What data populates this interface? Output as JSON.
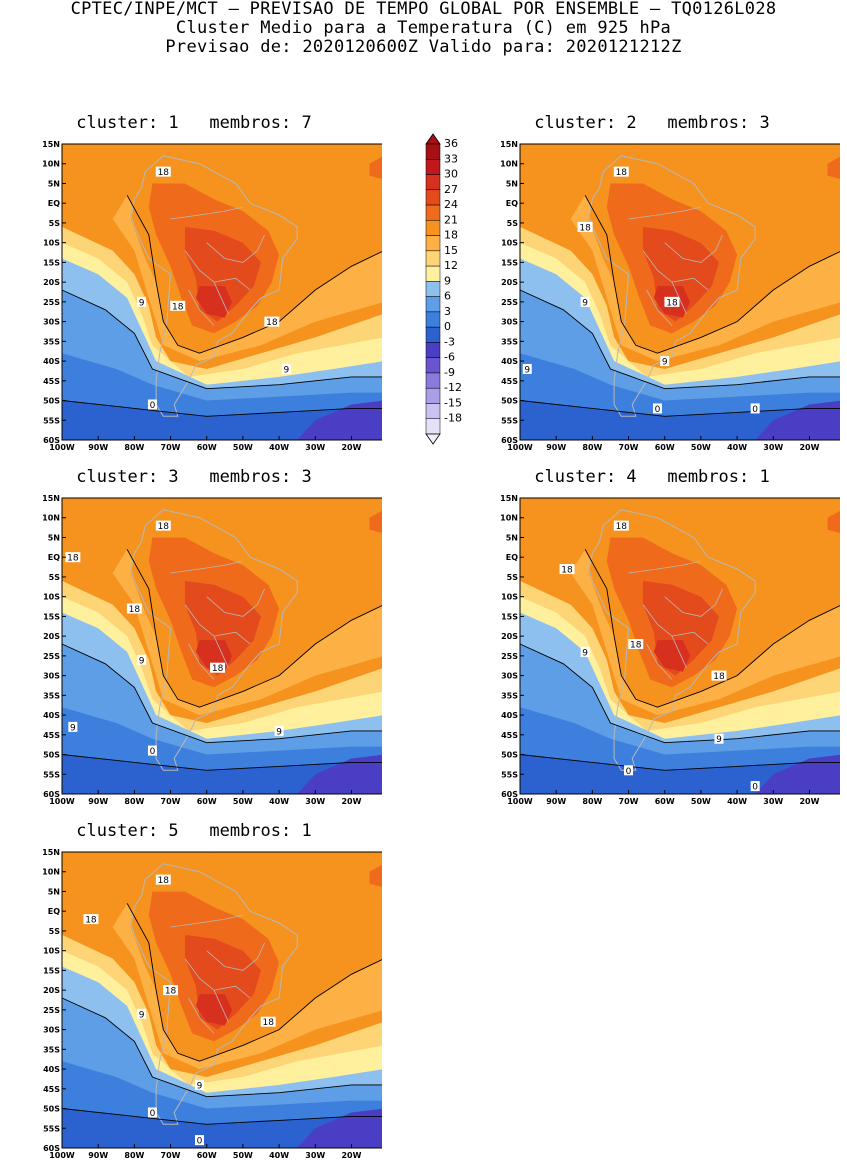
{
  "header": {
    "line1": "CPTEC/INPE/MCT — PREVISAO DE TEMPO GLOBAL POR ENSEMBLE — TQ0126L028",
    "line2": "Cluster Medio para a Temperatura (C) em 925 hPa",
    "line3": "Previsao de: 2020120600Z   Valido para: 2020121212Z"
  },
  "map_axes": {
    "lat_labels": [
      "15N",
      "10N",
      "5N",
      "EQ",
      "5S",
      "10S",
      "15S",
      "20S",
      "25S",
      "30S",
      "35S",
      "40S",
      "45S",
      "50S",
      "55S",
      "60S"
    ],
    "lon_labels": [
      "100W",
      "90W",
      "80W",
      "70W",
      "60W",
      "50W",
      "40W",
      "30W",
      "20W"
    ],
    "lat_range": [
      -60,
      15
    ],
    "lon_range": [
      -100,
      -11
    ]
  },
  "colorbar": {
    "levels": [
      "36",
      "33",
      "30",
      "27",
      "24",
      "21",
      "18",
      "15",
      "12",
      "9",
      "6",
      "3",
      "0",
      "-3",
      "-6",
      "-9",
      "-12",
      "-15",
      "-18"
    ],
    "colors": [
      "#a50f15",
      "#c0161c",
      "#d7301f",
      "#e34a1c",
      "#f06a1c",
      "#f5931e",
      "#fdb043",
      "#fed576",
      "#fff09e",
      "#8ec0ef",
      "#5e9ee6",
      "#3d7fdd",
      "#2b62d0",
      "#4a3fc4",
      "#6a55cf",
      "#8b79dc",
      "#ab9de7",
      "#cbc2f1",
      "#e6e1f8"
    ]
  },
  "panels": [
    {
      "title": "cluster: 1   membros: 7",
      "labels": [
        "18",
        "18",
        "18",
        "9",
        "9",
        "0"
      ]
    },
    {
      "title": "cluster: 2   membros: 3",
      "labels": [
        "18",
        "18",
        "18",
        "9",
        "9",
        "9",
        "0",
        "0"
      ]
    },
    {
      "title": "cluster: 3   membros: 3",
      "labels": [
        "18",
        "18",
        "18",
        "18",
        "9",
        "9",
        "9",
        "0"
      ]
    },
    {
      "title": "cluster: 4   membros: 1",
      "labels": [
        "18",
        "18",
        "18",
        "18",
        "9",
        "9",
        "0",
        "0"
      ]
    },
    {
      "title": "cluster: 5   membros: 1",
      "labels": [
        "18",
        "18",
        "18",
        "18",
        "9",
        "9",
        "0",
        "0"
      ]
    }
  ]
}
